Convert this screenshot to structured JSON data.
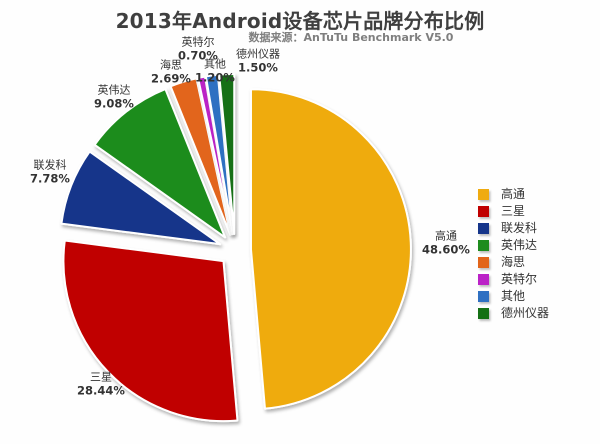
{
  "header": {
    "title": "2013年Android设备芯片品牌分布比例",
    "subtitle": "数据来源：AnTuTu Benchmark V5.0"
  },
  "chart_data": {
    "type": "pie",
    "title": "2013年Android设备芯片品牌分布比例",
    "subtitle": "数据来源：AnTuTu Benchmark V5.0",
    "unit": "%",
    "start_angle_deg": 0,
    "direction": "clockwise",
    "exploded": true,
    "legend_position": "right",
    "background": "#fefefe",
    "slices": [
      {
        "label": "高通",
        "value": 48.6,
        "display": "48.60%",
        "color": "#EFAB10"
      },
      {
        "label": "三星",
        "value": 28.44,
        "display": "28.44%",
        "color": "#C00000"
      },
      {
        "label": "联发科",
        "value": 7.78,
        "display": "7.78%",
        "color": "#15358A"
      },
      {
        "label": "英伟达",
        "value": 9.08,
        "display": "9.08%",
        "color": "#1E8C1E"
      },
      {
        "label": "海思",
        "value": 2.69,
        "display": "2.69%",
        "color": "#E2651A"
      },
      {
        "label": "英特尔",
        "value": 0.7,
        "display": "0.70%",
        "color": "#BB22C7"
      },
      {
        "label": "其他",
        "value": 1.2,
        "display": "1.20%",
        "color": "#2F70C2"
      },
      {
        "label": "德州仪器",
        "value": 1.5,
        "display": "1.50%",
        "color": "#157015"
      }
    ]
  }
}
